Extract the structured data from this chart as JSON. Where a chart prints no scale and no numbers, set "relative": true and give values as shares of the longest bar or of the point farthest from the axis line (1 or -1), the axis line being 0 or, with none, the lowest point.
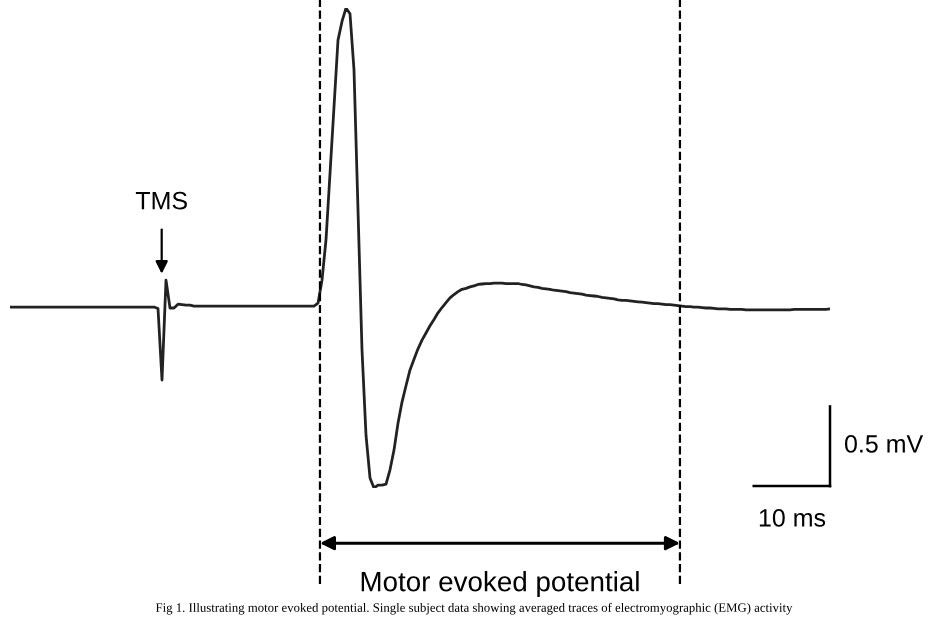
{
  "chart_data": {
    "type": "line",
    "relative": true,
    "legend": false,
    "marker": "none",
    "line_style": "solid",
    "categories": [
      null,
      null,
      null,
      null,
      null,
      null,
      null,
      null,
      null,
      null,
      null,
      null,
      null,
      null,
      null,
      null,
      null,
      null,
      null,
      null,
      null,
      null,
      null,
      null,
      null,
      null,
      null,
      null,
      null,
      null,
      null,
      null,
      null,
      null,
      null,
      null,
      null,
      null,
      null,
      null,
      null,
      null,
      null,
      null,
      null,
      null,
      null,
      null,
      null,
      null,
      null,
      null,
      null,
      null,
      null,
      null,
      null,
      null,
      null,
      null,
      null,
      null,
      null,
      null,
      null,
      null,
      null,
      null,
      null,
      null,
      null,
      null,
      null,
      null,
      null,
      null,
      null,
      null,
      null,
      null,
      null,
      null,
      null,
      null,
      null,
      null,
      null,
      null,
      null,
      null,
      null,
      null,
      null,
      null,
      null,
      null,
      null,
      null,
      null,
      null,
      null,
      null,
      null,
      null,
      null,
      null,
      null,
      null,
      null,
      null,
      null,
      null,
      null,
      null,
      null,
      null,
      null,
      null,
      null,
      null,
      null,
      null,
      null,
      null,
      null,
      null,
      null,
      null,
      null,
      null,
      null,
      null,
      null,
      null,
      null,
      null,
      null,
      null,
      null,
      null,
      null,
      null,
      null,
      null,
      null,
      null,
      null,
      null,
      null,
      null,
      null,
      null,
      null,
      null,
      null,
      null,
      null,
      null,
      null,
      null,
      null,
      null,
      null,
      null,
      null,
      null,
      null,
      null,
      null,
      null,
      null,
      null,
      null,
      null,
      null,
      null,
      null,
      null,
      null,
      null,
      null,
      null,
      null,
      null,
      null,
      null,
      null,
      null,
      null,
      null,
      null,
      null,
      null,
      null,
      null,
      null,
      null,
      null,
      null,
      null,
      null,
      null,
      null,
      null,
      null,
      null
    ],
    "series": [
      {
        "color": "#222222",
        "values": [
          0.377,
          0.377,
          0.377,
          0.377,
          0.377,
          0.377,
          0.377,
          0.377,
          0.377,
          0.377,
          0.377,
          0.377,
          0.377,
          0.377,
          0.377,
          0.377,
          0.377,
          0.377,
          0.377,
          0.377,
          0.377,
          0.377,
          0.377,
          0.377,
          0.377,
          0.377,
          0.377,
          0.377,
          0.377,
          0.377,
          0.377,
          0.377,
          0.377,
          0.377,
          0.377,
          0.377,
          0.377,
          0.374,
          0.225,
          0.433,
          0.375,
          0.375,
          0.383,
          0.382,
          0.381,
          0.381,
          0.379,
          0.379,
          0.379,
          0.379,
          0.379,
          0.379,
          0.379,
          0.379,
          0.379,
          0.379,
          0.379,
          0.379,
          0.379,
          0.379,
          0.379,
          0.379,
          0.379,
          0.379,
          0.379,
          0.379,
          0.379,
          0.379,
          0.379,
          0.379,
          0.379,
          0.379,
          0.379,
          0.379,
          0.379,
          0.379,
          0.379,
          0.385,
          0.433,
          0.517,
          0.655,
          0.794,
          0.933,
          0.972,
          1,
          0.988,
          0.871,
          0.579,
          0.288,
          0.11,
          0.021,
          0,
          0.006,
          0.006,
          0.008,
          0.038,
          0.079,
          0.135,
          0.179,
          0.213,
          0.246,
          0.268,
          0.29,
          0.308,
          0.323,
          0.338,
          0.351,
          0.365,
          0.376,
          0.386,
          0.396,
          0.403,
          0.409,
          0.414,
          0.416,
          0.419,
          0.421,
          0.424,
          0.425,
          0.426,
          0.426,
          0.427,
          0.427,
          0.427,
          0.426,
          0.426,
          0.426,
          0.426,
          0.424,
          0.423,
          0.421,
          0.419,
          0.418,
          0.416,
          0.415,
          0.414,
          0.412,
          0.411,
          0.41,
          0.409,
          0.407,
          0.406,
          0.405,
          0.404,
          0.402,
          0.401,
          0.4,
          0.399,
          0.397,
          0.396,
          0.395,
          0.394,
          0.392,
          0.391,
          0.391,
          0.39,
          0.389,
          0.388,
          0.387,
          0.386,
          0.385,
          0.384,
          0.384,
          0.383,
          0.382,
          0.382,
          0.381,
          0.38,
          0.379,
          0.378,
          0.378,
          0.377,
          0.377,
          0.376,
          0.375,
          0.375,
          0.374,
          0.373,
          0.373,
          0.373,
          0.372,
          0.372,
          0.372,
          0.372,
          0.371,
          0.371,
          0.371,
          0.371,
          0.371,
          0.371,
          0.371,
          0.371,
          0.371,
          0.371,
          0.371,
          0.371,
          0.372,
          0.372,
          0.372,
          0.372,
          0.372,
          0.372,
          0.372,
          0.372,
          0.372,
          0.373
        ]
      }
    ],
    "annotations": [
      "TMS",
      "Motor evoked potential",
      "0.5 mV",
      "10 ms",
      "Fig 1. Illustrating motor evoked potential. Single subject data showing averaged traces of electromyographic (EMG) activity"
    ]
  }
}
